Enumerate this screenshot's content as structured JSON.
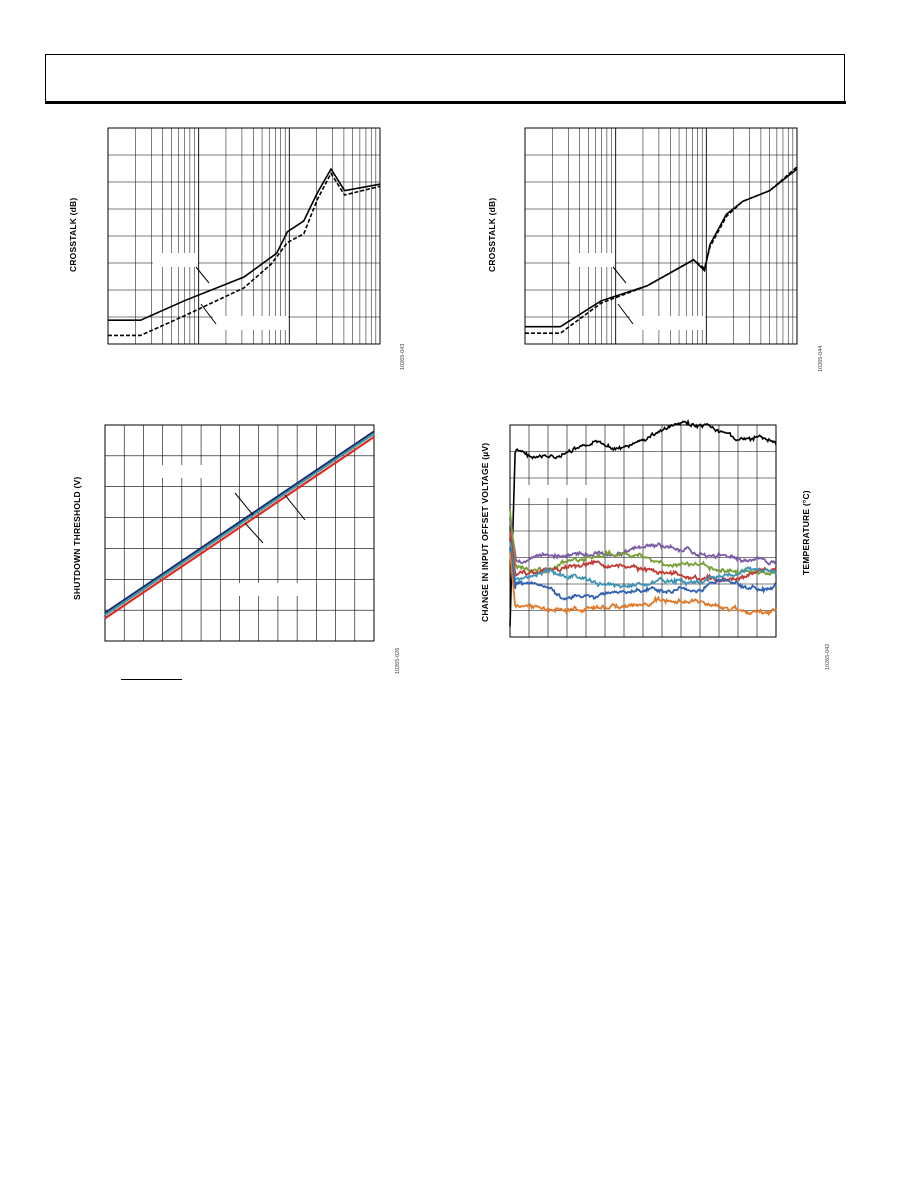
{
  "page": {
    "header_text": ""
  },
  "charts": [
    {
      "id": "c1",
      "ylabel": "CROSSTALK (dB)",
      "fig_id": "10265-043"
    },
    {
      "id": "c2",
      "ylabel": "CROSSTALK (dB)",
      "fig_id": "10265-044"
    },
    {
      "id": "c3",
      "ylabel": "SHUTDOWN THRESHOLD (V)",
      "fig_id": "10265-026"
    },
    {
      "id": "c4",
      "ylabel": "CHANGE IN INPUT OFFSET VOLTAGE (µV)",
      "ylabel2": "TEMPERATURE (°C)",
      "fig_id": "10265-042"
    }
  ],
  "chart_data": [
    {
      "type": "line",
      "xscale": "log",
      "grid": true,
      "ylabel": "CROSSTALK (dB)",
      "xlabel": "",
      "series": [
        {
          "style": "solid",
          "points": [
            [
              0.0,
              0.89
            ],
            [
              0.12,
              0.89
            ],
            [
              0.28,
              0.8
            ],
            [
              0.5,
              0.69
            ],
            [
              0.62,
              0.58
            ],
            [
              0.66,
              0.48
            ],
            [
              0.72,
              0.43
            ],
            [
              0.77,
              0.3
            ],
            [
              0.82,
              0.19
            ],
            [
              0.87,
              0.29
            ],
            [
              1.0,
              0.26
            ]
          ]
        },
        {
          "style": "dashed",
          "points": [
            [
              0.0,
              0.96
            ],
            [
              0.12,
              0.96
            ],
            [
              0.28,
              0.87
            ],
            [
              0.5,
              0.74
            ],
            [
              0.6,
              0.63
            ],
            [
              0.66,
              0.53
            ],
            [
              0.72,
              0.49
            ],
            [
              0.77,
              0.33
            ],
            [
              0.82,
              0.21
            ],
            [
              0.87,
              0.31
            ],
            [
              1.0,
              0.27
            ]
          ]
        }
      ]
    },
    {
      "type": "line",
      "xscale": "log",
      "grid": true,
      "ylabel": "CROSSTALK (dB)",
      "xlabel": "",
      "series": [
        {
          "style": "solid",
          "points": [
            [
              0.0,
              0.92
            ],
            [
              0.13,
              0.92
            ],
            [
              0.28,
              0.8
            ],
            [
              0.45,
              0.73
            ],
            [
              0.62,
              0.61
            ],
            [
              0.66,
              0.66
            ],
            [
              0.68,
              0.54
            ],
            [
              0.74,
              0.4
            ],
            [
              0.8,
              0.34
            ],
            [
              0.9,
              0.29
            ],
            [
              1.0,
              0.19
            ]
          ]
        },
        {
          "style": "dashed",
          "points": [
            [
              0.0,
              0.95
            ],
            [
              0.13,
              0.95
            ],
            [
              0.28,
              0.81
            ],
            [
              0.45,
              0.73
            ],
            [
              0.62,
              0.61
            ],
            [
              0.66,
              0.65
            ],
            [
              0.68,
              0.55
            ],
            [
              0.74,
              0.41
            ],
            [
              0.8,
              0.34
            ],
            [
              0.9,
              0.29
            ],
            [
              1.0,
              0.18
            ]
          ]
        }
      ]
    },
    {
      "type": "line",
      "grid": true,
      "ylabel": "SHUTDOWN THRESHOLD (V)",
      "xlabel": "",
      "series": [
        {
          "color": "#1c2a6e",
          "points": [
            [
              0,
              0.87
            ],
            [
              1,
              0.03
            ]
          ]
        },
        {
          "color": "#3f9aa5",
          "points": [
            [
              0,
              0.88
            ],
            [
              1,
              0.04
            ]
          ]
        },
        {
          "color": "#e02a1f",
          "points": [
            [
              0,
              0.895
            ],
            [
              1,
              0.055
            ]
          ]
        }
      ]
    },
    {
      "type": "line",
      "grid": true,
      "ylabel": "CHANGE IN INPUT OFFSET VOLTAGE (µV)",
      "ylabel2": "TEMPERATURE (°C)",
      "xlabel": "",
      "series": [
        {
          "color": "#000000",
          "base": 0.1,
          "start": 0.95
        },
        {
          "color": "#7b5aa6",
          "base": 0.61,
          "start": 0.45
        },
        {
          "color": "#77a03a",
          "base": 0.66,
          "start": 0.4
        },
        {
          "color": "#c23b33",
          "base": 0.7,
          "start": 0.5
        },
        {
          "color": "#3f94b5",
          "base": 0.74,
          "start": 0.55
        },
        {
          "color": "#2f62b0",
          "base": 0.78,
          "start": 0.58
        },
        {
          "color": "#e07a2a",
          "base": 0.86,
          "start": 0.6
        }
      ]
    }
  ]
}
